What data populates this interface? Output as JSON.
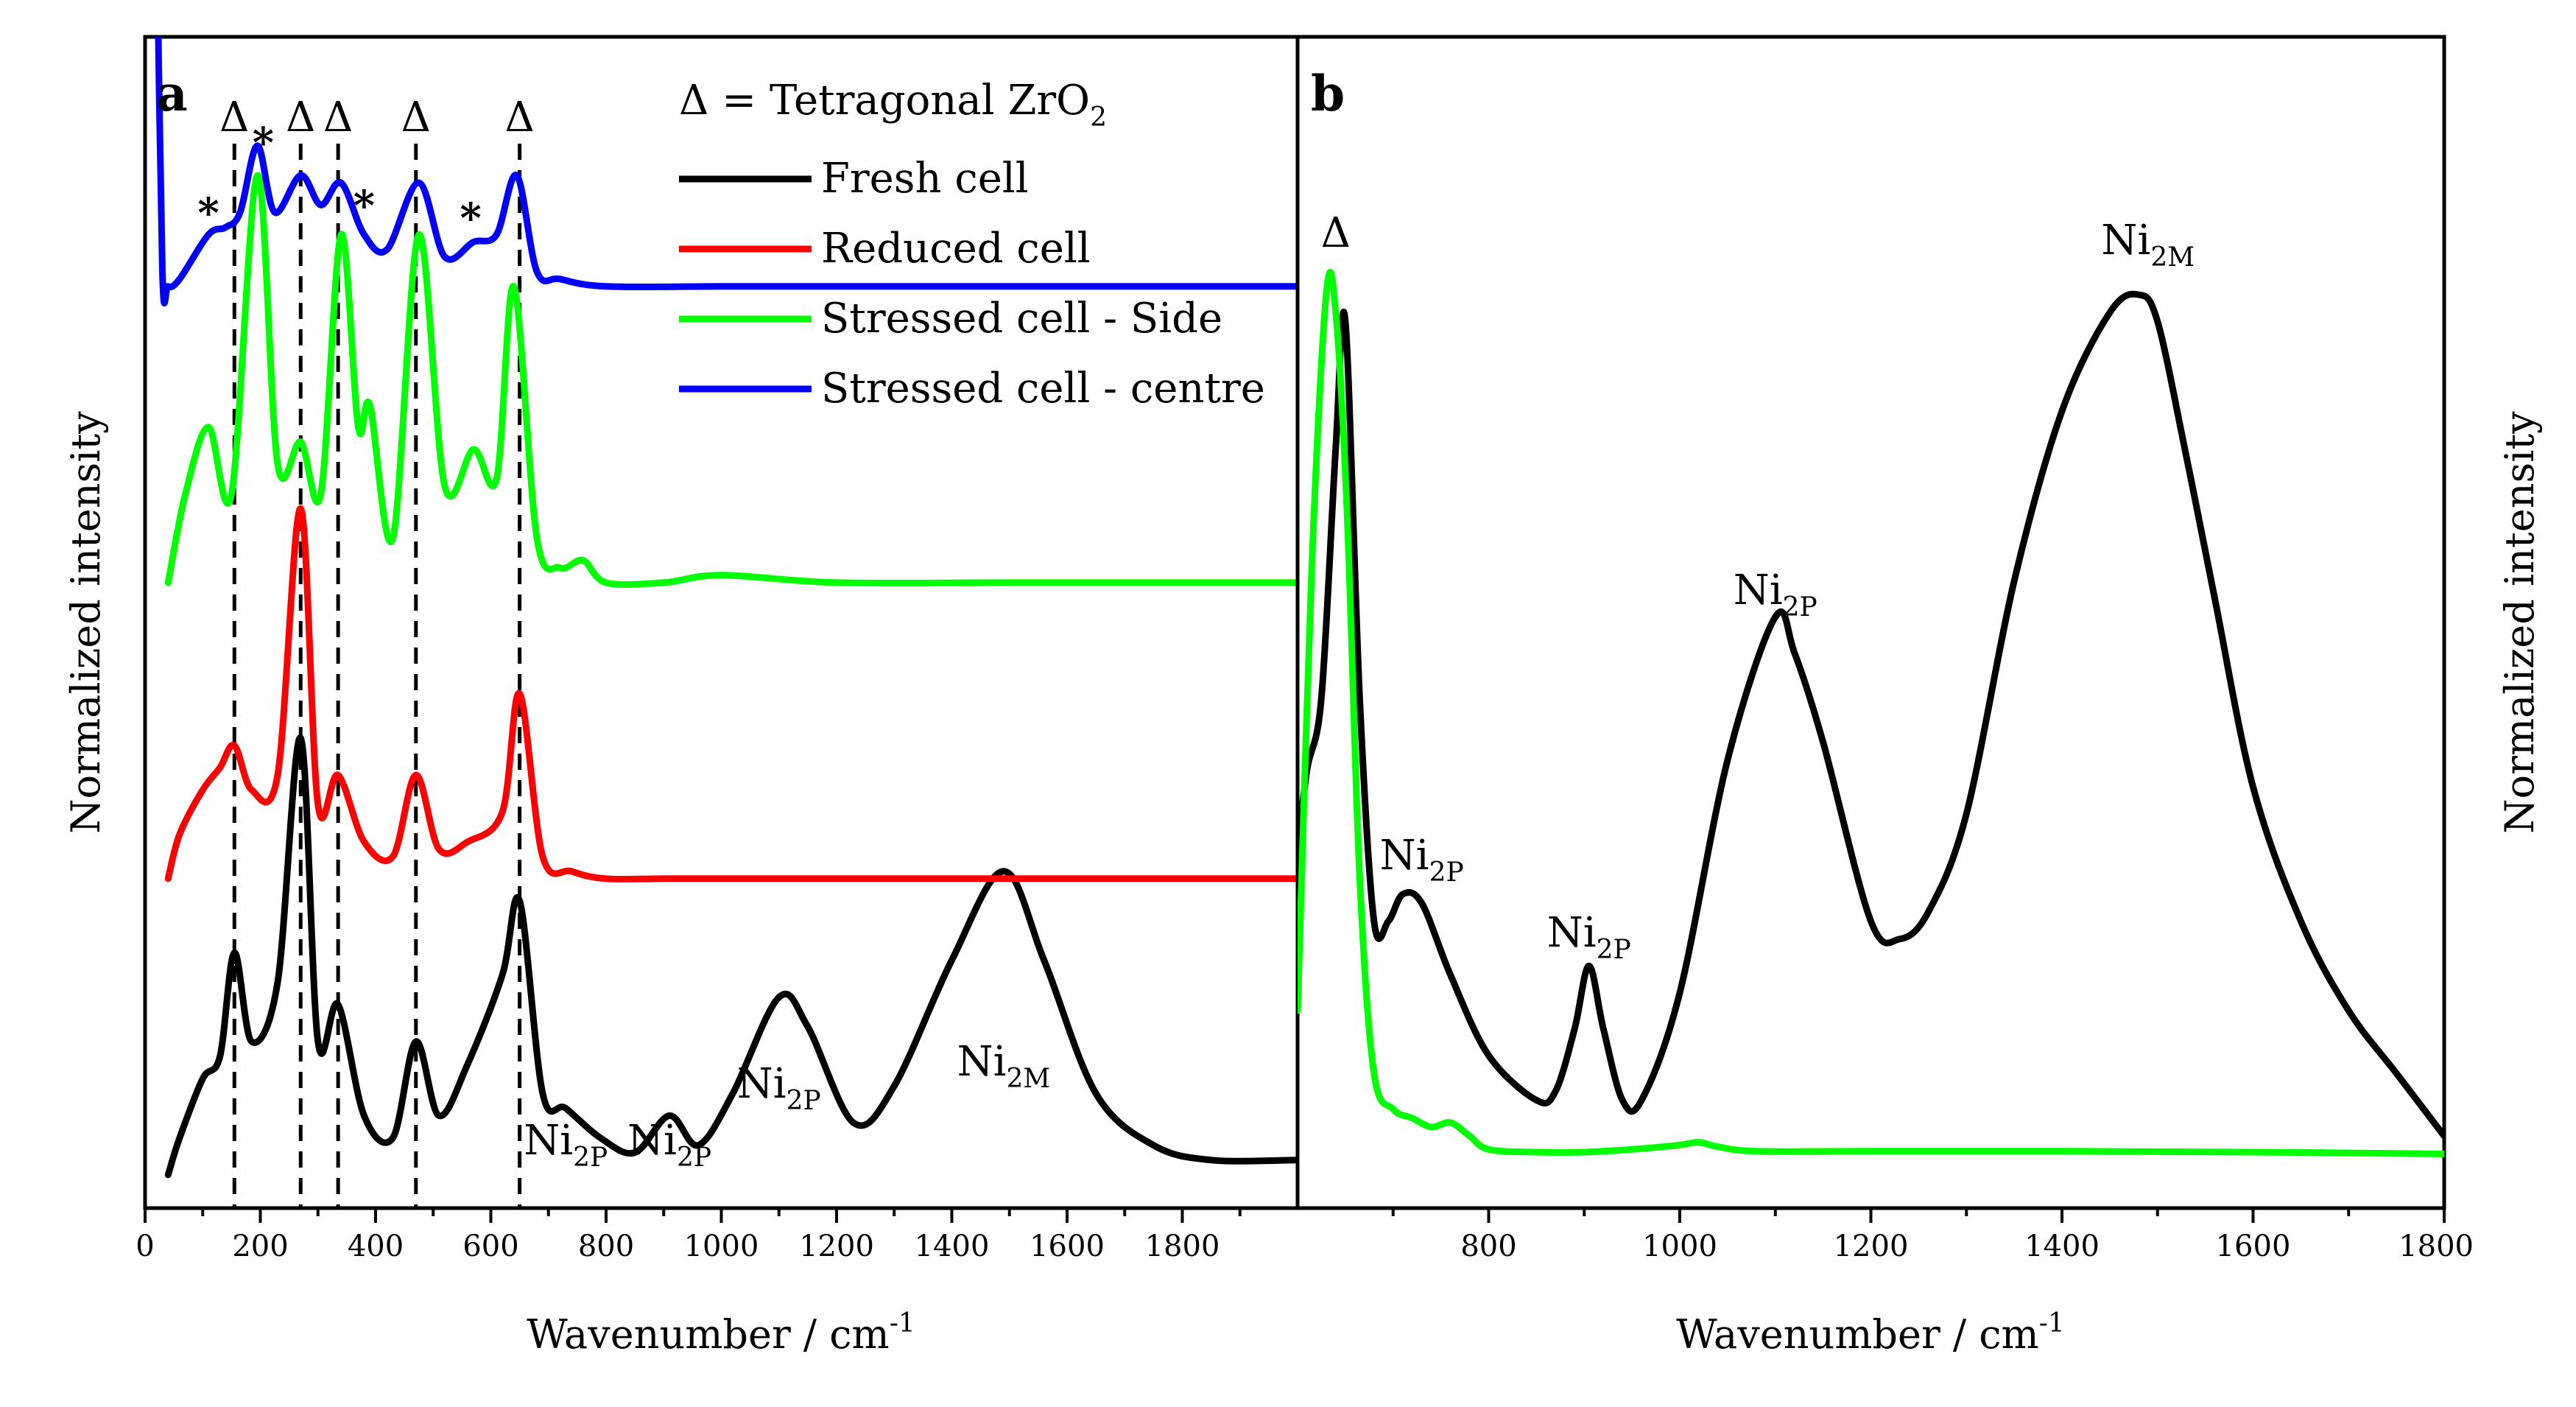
{
  "chart_data": [
    {
      "panel": "a",
      "type": "line",
      "xlabel": "Wavenumber / cm-1",
      "xlabel_parts": [
        "Wavenumber / cm",
        "-1"
      ],
      "ylabel": "Normalized intensity",
      "xlim": [
        0,
        2000
      ],
      "xticks": [
        0,
        200,
        400,
        600,
        800,
        1000,
        1200,
        1400,
        1600,
        1800
      ],
      "legend_title": [
        "Δ = Tetragonal ZrO",
        "2"
      ],
      "delta_symbol": "Δ",
      "star_symbol": "*",
      "tetragonal_zro2_lines": [
        155,
        270,
        335,
        470,
        650
      ],
      "star_positions": [
        110,
        205,
        380,
        565
      ],
      "peak_labels": [
        {
          "base": "Ni",
          "sub": "2P",
          "x": 730
        },
        {
          "base": "Ni",
          "sub": "2P",
          "x": 910
        },
        {
          "base": "Ni",
          "sub": "2P",
          "x": 1100
        },
        {
          "base": "Ni",
          "sub": "2M",
          "x": 1490
        }
      ],
      "series": [
        {
          "name": "Fresh cell",
          "color": "#000000",
          "offset": 0.02,
          "x": [
            40,
            60,
            100,
            130,
            155,
            185,
            230,
            270,
            300,
            335,
            380,
            430,
            470,
            510,
            560,
            620,
            650,
            690,
            730,
            790,
            850,
            910,
            960,
            1020,
            1100,
            1150,
            1230,
            1300,
            1400,
            1490,
            1560,
            1650,
            1750,
            1850,
            2000
          ],
          "values": [
            0.01,
            0.06,
            0.14,
            0.17,
            0.31,
            0.19,
            0.27,
            0.6,
            0.19,
            0.24,
            0.09,
            0.06,
            0.19,
            0.09,
            0.16,
            0.28,
            0.38,
            0.12,
            0.1,
            0.06,
            0.04,
            0.09,
            0.05,
            0.12,
            0.25,
            0.21,
            0.08,
            0.13,
            0.3,
            0.42,
            0.3,
            0.12,
            0.05,
            0.03,
            0.03
          ]
        },
        {
          "name": "Reduced cell",
          "color": "#ff0000",
          "offset": 0.43,
          "x": [
            40,
            60,
            100,
            130,
            155,
            185,
            230,
            270,
            300,
            335,
            380,
            430,
            470,
            510,
            560,
            620,
            650,
            690,
            740,
            800,
            900,
            1000,
            1200,
            1500,
            1800,
            2000
          ],
          "values": [
            0.0,
            0.06,
            0.12,
            0.15,
            0.18,
            0.12,
            0.14,
            0.5,
            0.1,
            0.14,
            0.05,
            0.03,
            0.14,
            0.04,
            0.05,
            0.09,
            0.25,
            0.03,
            0.01,
            0.0,
            0.0,
            0.0,
            0.0,
            0.0,
            0.0,
            0.0
          ]
        },
        {
          "name": "Stressed cell - Side",
          "color": "#00ff00",
          "offset": 0.83,
          "x": [
            40,
            70,
            110,
            150,
            195,
            230,
            270,
            305,
            340,
            370,
            390,
            430,
            475,
            520,
            570,
            610,
            640,
            680,
            720,
            760,
            800,
            900,
            1000,
            1200,
            1500,
            1800,
            2000
          ],
          "values": [
            0.0,
            0.12,
            0.21,
            0.12,
            0.55,
            0.16,
            0.19,
            0.12,
            0.47,
            0.21,
            0.24,
            0.06,
            0.47,
            0.13,
            0.18,
            0.14,
            0.4,
            0.06,
            0.02,
            0.03,
            0.0,
            0.0,
            0.01,
            0.0,
            0.0,
            0.0,
            0.0
          ]
        },
        {
          "name": "Stressed cell - centre",
          "color": "#0000ff",
          "offset": 1.23,
          "x": [
            20,
            30,
            40,
            60,
            110,
            140,
            165,
            195,
            225,
            270,
            305,
            340,
            380,
            420,
            475,
            520,
            570,
            610,
            645,
            680,
            720,
            800,
            1000,
            1200,
            1500,
            1800,
            2000
          ],
          "values": [
            0.5,
            0.02,
            0.0,
            0.01,
            0.07,
            0.08,
            0.1,
            0.19,
            0.1,
            0.15,
            0.11,
            0.14,
            0.07,
            0.05,
            0.14,
            0.04,
            0.06,
            0.07,
            0.15,
            0.02,
            0.01,
            0.0,
            0.0,
            0.0,
            0.0,
            0.0,
            0.0
          ]
        }
      ]
    },
    {
      "panel": "b",
      "type": "line",
      "xlabel": "Wavenumber / cm-1",
      "xlabel_parts": [
        "Wavenumber / cm",
        "-1"
      ],
      "ylabel": "Normalized intensity",
      "xlim": [
        600,
        1800
      ],
      "xticks": [
        800,
        1000,
        1200,
        1400,
        1600,
        1800
      ],
      "delta_label": {
        "text": "Δ",
        "x": 640
      },
      "peak_labels": [
        {
          "base": "Ni",
          "sub": "2P",
          "x": 730
        },
        {
          "base": "Ni",
          "sub": "2P",
          "x": 905
        },
        {
          "base": "Ni",
          "sub": "2P",
          "x": 1100
        },
        {
          "base": "Ni",
          "sub": "2M",
          "x": 1490
        }
      ],
      "series": [
        {
          "name": "Fresh cell",
          "color": "#000000",
          "x": [
            600,
            610,
            625,
            640,
            650,
            665,
            680,
            695,
            710,
            730,
            760,
            800,
            850,
            870,
            890,
            905,
            920,
            940,
            960,
            1000,
            1050,
            1100,
            1120,
            1150,
            1200,
            1230,
            1260,
            1300,
            1350,
            1400,
            1450,
            1480,
            1500,
            1530,
            1560,
            1600,
            1650,
            1700,
            1750,
            1800
          ],
          "values": [
            0.38,
            0.47,
            0.55,
            0.83,
            0.97,
            0.55,
            0.3,
            0.3,
            0.33,
            0.32,
            0.24,
            0.15,
            0.1,
            0.11,
            0.18,
            0.25,
            0.18,
            0.1,
            0.1,
            0.22,
            0.48,
            0.64,
            0.6,
            0.5,
            0.3,
            0.28,
            0.31,
            0.42,
            0.68,
            0.87,
            0.98,
            1.0,
            0.97,
            0.82,
            0.66,
            0.45,
            0.3,
            0.2,
            0.13,
            0.06
          ]
        },
        {
          "name": "Stressed cell - Side",
          "color": "#00ff00",
          "x": [
            600,
            615,
            630,
            640,
            652,
            665,
            680,
            700,
            720,
            740,
            760,
            780,
            800,
            850,
            900,
            950,
            1000,
            1020,
            1040,
            1080,
            1200,
            1400,
            1600,
            1800
          ],
          "values": [
            0.2,
            0.7,
            1.0,
            0.98,
            0.75,
            0.35,
            0.13,
            0.09,
            0.08,
            0.07,
            0.075,
            0.06,
            0.045,
            0.042,
            0.042,
            0.045,
            0.05,
            0.053,
            0.048,
            0.043,
            0.043,
            0.043,
            0.042,
            0.04
          ]
        }
      ]
    }
  ]
}
